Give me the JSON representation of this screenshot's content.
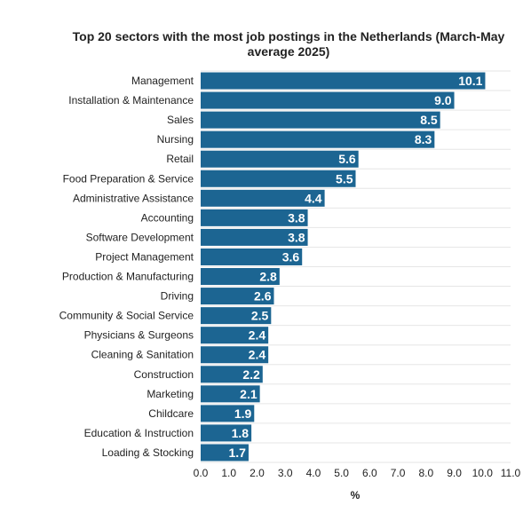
{
  "chart_data": {
    "type": "bar",
    "orientation": "horizontal",
    "title": "Top 20 sectors with the most job postings in the Netherlands (March-May average 2025)",
    "xlabel": "%",
    "ylabel": "",
    "xlim": [
      0,
      11
    ],
    "xticks": [
      "0.0",
      "1.0",
      "2.0",
      "3.0",
      "4.0",
      "5.0",
      "6.0",
      "7.0",
      "8.0",
      "9.0",
      "10.0",
      "11.0"
    ],
    "grid": true,
    "bar_color": "#1c6592",
    "categories": [
      "Management",
      "Installation & Maintenance",
      "Sales",
      "Nursing",
      "Retail",
      "Food Preparation & Service",
      "Administrative Assistance",
      "Accounting",
      "Software Development",
      "Project Management",
      "Production & Manufacturing",
      "Driving",
      "Community & Social Service",
      "Physicians & Surgeons",
      "Cleaning & Sanitation",
      "Construction",
      "Marketing",
      "Childcare",
      "Education & Instruction",
      "Loading & Stocking"
    ],
    "values": [
      10.1,
      9.0,
      8.5,
      8.3,
      5.6,
      5.5,
      4.4,
      3.8,
      3.8,
      3.6,
      2.8,
      2.6,
      2.5,
      2.4,
      2.4,
      2.2,
      2.1,
      1.9,
      1.8,
      1.7
    ],
    "value_labels": [
      "10.1",
      "9.0",
      "8.5",
      "8.3",
      "5.6",
      "5.5",
      "4.4",
      "3.8",
      "3.8",
      "3.6",
      "2.8",
      "2.6",
      "2.5",
      "2.4",
      "2.4",
      "2.2",
      "2.1",
      "1.9",
      "1.8",
      "1.7"
    ]
  }
}
